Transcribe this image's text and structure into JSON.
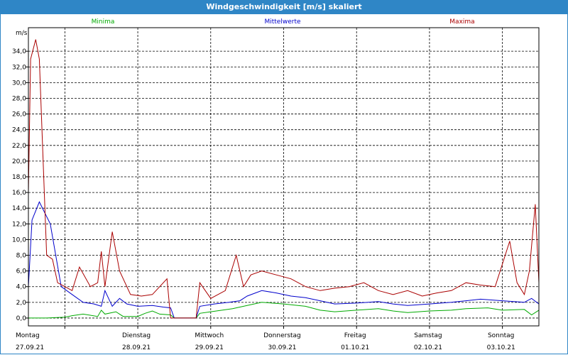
{
  "window": {
    "title": "Windgeschwindigkeit [m/s] skaliert"
  },
  "chart_data": {
    "type": "line",
    "ylabel": "m/s",
    "ylim": [
      -1.0,
      37.0
    ],
    "yticks": [
      "0,0",
      "2,0",
      "4,0",
      "6,0",
      "8,0",
      "10,0",
      "12,0",
      "14,0",
      "16,0",
      "18,0",
      "20,0",
      "22,0",
      "24,0",
      "26,0",
      "28,0",
      "30,0",
      "32,0",
      "34,0"
    ],
    "xlim": [
      0,
      7
    ],
    "xticks": [
      {
        "day": "Montag",
        "date": "27.09.21"
      },
      {
        "day": "Dienstag",
        "date": "28.09.21"
      },
      {
        "day": "Mittwoch",
        "date": "29.09.21"
      },
      {
        "day": "Donnerstag",
        "date": "30.09.21"
      },
      {
        "day": "Freitag",
        "date": "01.10.21"
      },
      {
        "day": "Samstag",
        "date": "02.10.21"
      },
      {
        "day": "Sonntag",
        "date": "03.10.21"
      }
    ],
    "grid": true,
    "legend": "top",
    "series": [
      {
        "name": "Minima",
        "color": "#00aa00",
        "x": [
          0,
          0.25,
          0.5,
          0.6,
          0.75,
          0.95,
          1.0,
          1.05,
          1.2,
          1.3,
          1.5,
          1.6,
          1.7,
          1.8,
          1.95,
          2.0,
          2.3,
          2.35,
          2.5,
          2.8,
          3.0,
          3.2,
          3.5,
          3.8,
          4.0,
          4.2,
          4.5,
          4.8,
          5.0,
          5.2,
          5.5,
          5.8,
          6.0,
          6.3,
          6.5,
          6.8,
          6.9,
          7.0
        ],
        "values": [
          0.0,
          0.0,
          0.1,
          0.3,
          0.5,
          0.2,
          1.0,
          0.5,
          0.8,
          0.2,
          0.2,
          0.6,
          0.9,
          0.5,
          0.4,
          0.0,
          0.0,
          0.6,
          0.8,
          1.2,
          1.6,
          2.0,
          1.8,
          1.5,
          1.0,
          0.8,
          1.0,
          1.2,
          0.9,
          0.7,
          0.9,
          1.0,
          1.2,
          1.3,
          1.0,
          1.1,
          0.4,
          1.0
        ]
      },
      {
        "name": "Mittelwerte",
        "color": "#0000cc",
        "x": [
          0,
          0.05,
          0.15,
          0.3,
          0.45,
          0.6,
          0.75,
          0.9,
          1.0,
          1.05,
          1.15,
          1.25,
          1.35,
          1.5,
          1.7,
          1.85,
          1.95,
          2.0,
          2.3,
          2.35,
          2.55,
          2.75,
          2.9,
          3.0,
          3.2,
          3.4,
          3.6,
          3.8,
          4.0,
          4.2,
          4.5,
          4.8,
          5.0,
          5.2,
          5.5,
          5.8,
          6.0,
          6.2,
          6.5,
          6.8,
          6.9,
          7.0
        ],
        "values": [
          4.0,
          12.5,
          14.8,
          12.0,
          4.0,
          3.0,
          2.0,
          1.8,
          1.5,
          3.5,
          1.5,
          2.5,
          1.8,
          1.5,
          1.6,
          1.4,
          1.3,
          0.0,
          0.0,
          1.5,
          1.8,
          2.0,
          2.2,
          2.8,
          3.5,
          3.2,
          2.8,
          2.6,
          2.2,
          1.8,
          1.9,
          2.1,
          1.8,
          1.6,
          1.8,
          2.0,
          2.2,
          2.4,
          2.2,
          2.0,
          2.5,
          1.8
        ]
      },
      {
        "name": "Maxima",
        "color": "#aa0000",
        "x": [
          0,
          0.03,
          0.1,
          0.15,
          0.25,
          0.33,
          0.4,
          0.5,
          0.6,
          0.7,
          0.85,
          0.95,
          1.0,
          1.05,
          1.15,
          1.25,
          1.4,
          1.55,
          1.7,
          1.9,
          1.95,
          2.0,
          2.3,
          2.35,
          2.5,
          2.7,
          2.85,
          2.95,
          3.05,
          3.2,
          3.4,
          3.6,
          3.8,
          4.0,
          4.2,
          4.4,
          4.6,
          4.8,
          5.0,
          5.2,
          5.4,
          5.6,
          5.8,
          6.0,
          6.2,
          6.4,
          6.6,
          6.7,
          6.8,
          6.87,
          6.95,
          7.0
        ],
        "values": [
          16.0,
          33.0,
          35.5,
          33.0,
          8.0,
          7.5,
          4.5,
          4.0,
          3.5,
          6.5,
          4.0,
          4.5,
          8.5,
          4.0,
          11.0,
          6.0,
          3.0,
          2.8,
          3.0,
          5.0,
          0.0,
          0.0,
          0.0,
          4.5,
          2.5,
          3.5,
          8.0,
          4.0,
          5.5,
          6.0,
          5.5,
          5.0,
          4.0,
          3.5,
          3.8,
          4.0,
          4.5,
          3.5,
          3.0,
          3.5,
          2.8,
          3.2,
          3.5,
          4.5,
          4.2,
          4.0,
          9.8,
          4.5,
          3.0,
          6.0,
          14.5,
          4.5
        ]
      }
    ]
  }
}
